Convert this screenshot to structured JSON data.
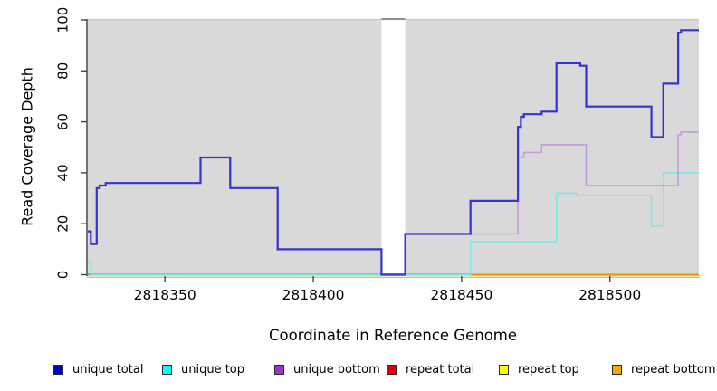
{
  "chart_data": {
    "type": "line",
    "subtype": "step-coverage",
    "title": "",
    "xlabel": "Coordinate in Reference Genome",
    "ylabel": "Read Coverage Depth",
    "xlim": [
      2818324,
      2818530
    ],
    "ylim": [
      0,
      100
    ],
    "x_ticks": [
      2818350,
      2818400,
      2818450,
      2818500
    ],
    "y_ticks": [
      0,
      20,
      40,
      60,
      80,
      100
    ],
    "grid": false,
    "background": "#d9d9d9",
    "no_data_gap": [
      2818423,
      2818431
    ],
    "baseline_overlap": {
      "from": 2818324,
      "to": 2818453,
      "color": "#74c476"
    },
    "legend_position": "bottom",
    "series": [
      {
        "name": "repeat total",
        "line_color": "#dd0000",
        "width": 1.4,
        "steps": [
          [
            2818324,
            0
          ]
        ]
      },
      {
        "name": "repeat top",
        "line_color": "#f0eec6",
        "width": 1.6,
        "steps": [
          [
            2818324,
            0
          ]
        ]
      },
      {
        "name": "repeat bottom",
        "line_color": "#ff9800",
        "width": 2.6,
        "steps": [
          [
            2818453,
            0
          ]
        ]
      },
      {
        "name": "unique top",
        "line_color": "#7ae8e8",
        "width": 1.6,
        "steps": [
          [
            2818324,
            5
          ],
          [
            2818325,
            0
          ],
          [
            2818453,
            13
          ],
          [
            2818482,
            32
          ],
          [
            2818489,
            31
          ],
          [
            2818514,
            19
          ],
          [
            2818518,
            40
          ]
        ]
      },
      {
        "name": "unique bottom",
        "line_color": "#c49bdd",
        "width": 1.6,
        "steps": [
          [
            2818431,
            16
          ],
          [
            2818469,
            46
          ],
          [
            2818471,
            48
          ],
          [
            2818477,
            51
          ],
          [
            2818492,
            35
          ],
          [
            2818523,
            55
          ],
          [
            2818524,
            56
          ]
        ]
      },
      {
        "name": "unique total",
        "line_color": "#3434cf",
        "width": 2.2,
        "steps": [
          [
            2818324,
            17
          ],
          [
            2818325,
            12
          ],
          [
            2818327,
            34
          ],
          [
            2818328,
            35
          ],
          [
            2818330,
            36
          ],
          [
            2818362,
            46
          ],
          [
            2818372,
            34
          ],
          [
            2818388,
            10
          ],
          [
            2818423,
            0
          ],
          [
            2818431,
            16
          ],
          [
            2818453,
            29
          ],
          [
            2818469,
            58
          ],
          [
            2818470,
            62
          ],
          [
            2818471,
            63
          ],
          [
            2818477,
            64
          ],
          [
            2818482,
            83
          ],
          [
            2818490,
            82
          ],
          [
            2818492,
            66
          ],
          [
            2818514,
            54
          ],
          [
            2818518,
            75
          ],
          [
            2818523,
            95
          ],
          [
            2818524,
            96
          ]
        ]
      }
    ]
  },
  "legend": {
    "items": [
      {
        "label": "unique total",
        "color": "#0000cc"
      },
      {
        "label": "unique top",
        "color": "#00ffff"
      },
      {
        "label": "unique bottom",
        "color": "#9933cc"
      },
      {
        "label": "repeat total",
        "color": "#dd0000"
      },
      {
        "label": "repeat top",
        "color": "#ffff00"
      },
      {
        "label": "repeat bottom",
        "color": "#ffa500"
      }
    ]
  }
}
